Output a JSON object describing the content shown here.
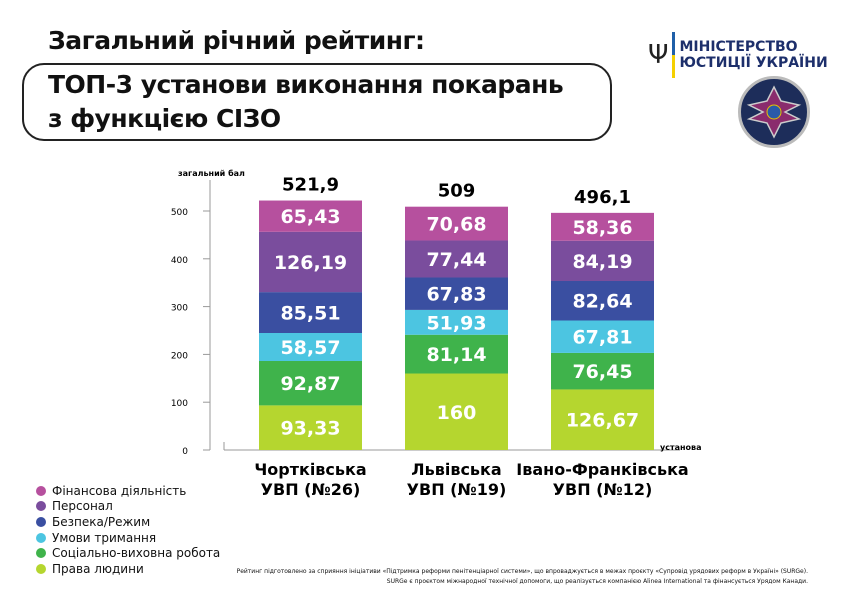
{
  "title_line1": "Загальний річний рейтинг:",
  "title_line2": "ТОП-3 установи виконання покарань",
  "title_line3": "з функцією СІЗО",
  "logo": {
    "line1": "МІНІСТЕРСТВО",
    "line2": "ЮСТИЦІЇ УКРАЇНИ"
  },
  "footnote": {
    "line1": "Рейтинг підготовлено за сприяння ініціативи «Підтримка реформи пенітенціарної системи», що впроваджується в межах проєкту «Супровід урядових реформ в Україні» (SURGe).",
    "line2": "SURGe є проєктом міжнародної технічної допомоги, що реалізується компанією Alinea International та фінансується Урядом Канади."
  },
  "chart_data": {
    "type": "bar",
    "stacked": true,
    "ylabel": "загальний бал",
    "xlabel": "установа",
    "ylim": [
      0,
      520
    ],
    "yticks": [
      0,
      100,
      200,
      300,
      400,
      500
    ],
    "categories": [
      [
        "Чортківська",
        "УВП (№26)"
      ],
      [
        "Львівська",
        "УВП (№19)"
      ],
      [
        "Івано-Франківська",
        "УВП (№12)"
      ]
    ],
    "totals": [
      "521,9",
      "509",
      "496,1"
    ],
    "series": [
      {
        "name": "Права людини",
        "color": "#b5d62f",
        "values": [
          93.33,
          160,
          126.67
        ],
        "labels": [
          "93,33",
          "160",
          "126,67"
        ]
      },
      {
        "name": "Соціально-виховна робота",
        "color": "#3fb34b",
        "values": [
          92.87,
          81.14,
          76.45
        ],
        "labels": [
          "92,87",
          "81,14",
          "76,45"
        ]
      },
      {
        "name": "Умови тримання",
        "color": "#4cc5e1",
        "values": [
          58.57,
          51.93,
          67.81
        ],
        "labels": [
          "58,57",
          "51,93",
          "67,81"
        ]
      },
      {
        "name": "Безпека/Режим",
        "color": "#3a4fa1",
        "values": [
          85.51,
          67.83,
          82.64
        ],
        "labels": [
          "85,51",
          "67,83",
          "82,64"
        ]
      },
      {
        "name": "Персонал",
        "color": "#7a4d9d",
        "values": [
          126.19,
          77.44,
          84.19
        ],
        "labels": [
          "126,19",
          "77,44",
          "84,19"
        ]
      },
      {
        "name": "Фінансова діяльність",
        "color": "#b6509e",
        "values": [
          65.43,
          70.68,
          58.36
        ],
        "labels": [
          "65,43",
          "70,68",
          "58,36"
        ]
      }
    ],
    "legend_position": "bottom-left",
    "grid": false
  }
}
